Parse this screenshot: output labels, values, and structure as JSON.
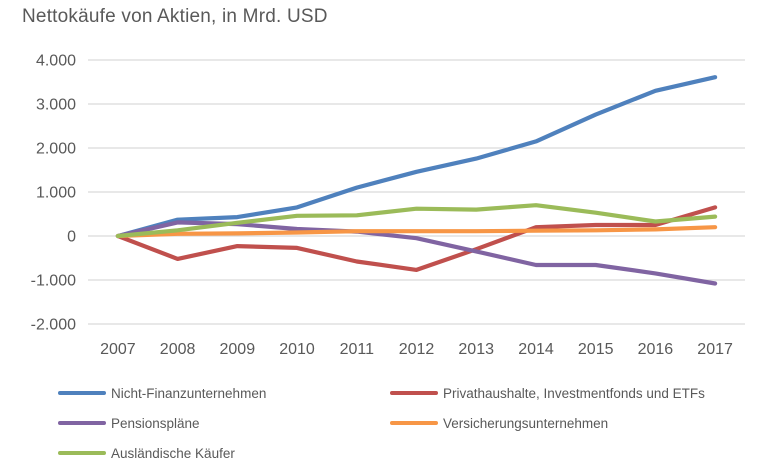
{
  "chart": {
    "title": "Nettokäufe von Aktien, in Mrd. USD"
  },
  "chart_data": {
    "type": "line",
    "title": "Nettokäufe von Aktien, in Mrd. USD",
    "xlabel": "",
    "ylabel": "",
    "categories": [
      "2007",
      "2008",
      "2009",
      "2010",
      "2011",
      "2012",
      "2013",
      "2014",
      "2015",
      "2016",
      "2017"
    ],
    "series": [
      {
        "name": "Nicht-Finanzunternehmen",
        "color": "#4F81BD",
        "values": [
          0,
          370,
          430,
          650,
          1100,
          1460,
          1760,
          2150,
          2760,
          3300,
          3610
        ]
      },
      {
        "name": "Privathaushalte, Investmentfonds und ETFs",
        "color": "#C0504D",
        "values": [
          0,
          -520,
          -230,
          -270,
          -580,
          -770,
          -300,
          200,
          250,
          250,
          650
        ]
      },
      {
        "name": "Pensionspläne",
        "color": "#8064A2",
        "values": [
          0,
          310,
          270,
          160,
          100,
          -50,
          -350,
          -660,
          -660,
          -850,
          -1080
        ]
      },
      {
        "name": "Versicherungsunternehmen",
        "color": "#F79646",
        "values": [
          0,
          50,
          60,
          80,
          110,
          110,
          110,
          120,
          130,
          150,
          200
        ]
      },
      {
        "name": "Ausländische Käufer",
        "color": "#9BBB59",
        "values": [
          0,
          130,
          300,
          460,
          470,
          620,
          600,
          700,
          530,
          330,
          440
        ]
      }
    ],
    "ylim": [
      -2000,
      4000
    ],
    "y_ticks": [
      {
        "value": 4000,
        "label": "4.000"
      },
      {
        "value": 3000,
        "label": "3.000"
      },
      {
        "value": 2000,
        "label": "2.000"
      },
      {
        "value": 1000,
        "label": "1.000"
      },
      {
        "value": 0,
        "label": "0"
      },
      {
        "value": -1000,
        "label": "-1.000"
      },
      {
        "value": -2000,
        "label": "-2.000"
      }
    ],
    "grid": "horizontal",
    "legend_position": "bottom-two-columns",
    "text_color": "#595959",
    "gridline_color": "#D9D9D9"
  }
}
